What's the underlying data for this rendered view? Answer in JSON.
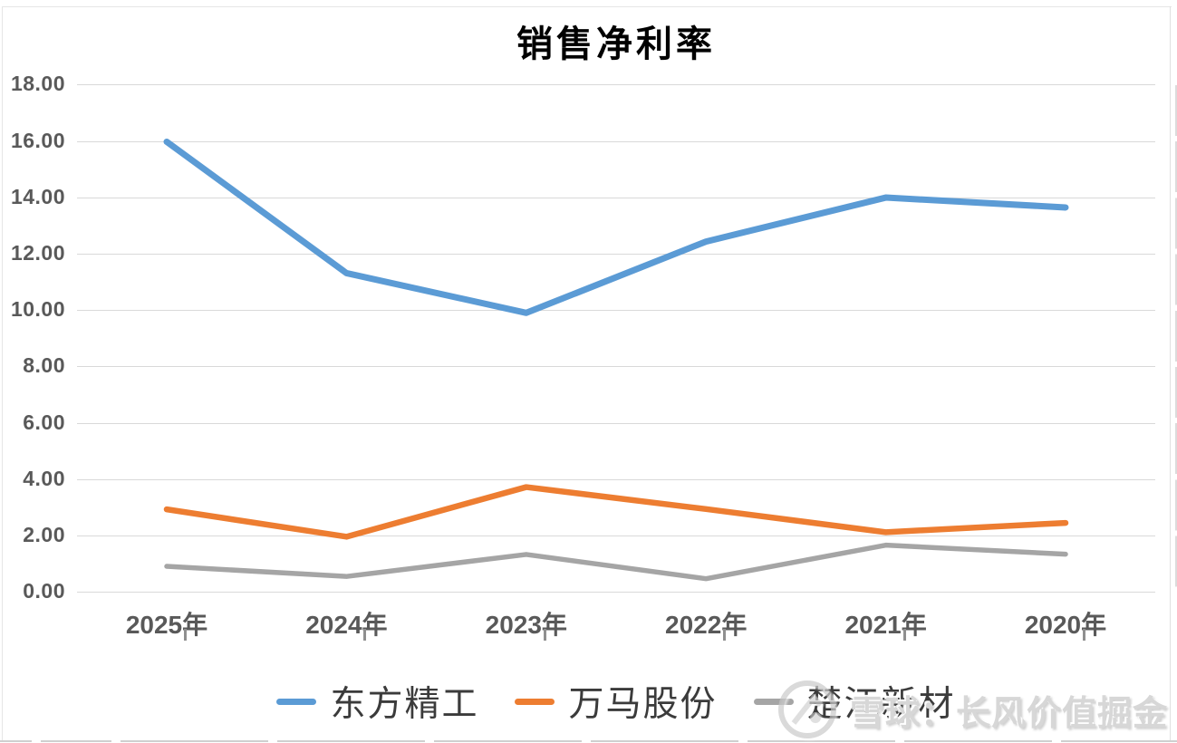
{
  "watermark": {
    "text": "雪球：长风价值掘金",
    "icon": "xueqiu-logo-icon"
  },
  "chart_data": {
    "type": "line",
    "title": "销售净利率",
    "categories": [
      "2025年",
      "2024年",
      "2023年",
      "2022年",
      "2021年",
      "2020年"
    ],
    "series": [
      {
        "name": "东方精工",
        "color": "#5B9BD5",
        "values": [
          15.97,
          11.31,
          9.9,
          12.43,
          13.99,
          13.64
        ]
      },
      {
        "name": "万马股份",
        "color": "#ED7D31",
        "values": [
          2.93,
          1.96,
          3.72,
          2.94,
          2.12,
          2.45
        ]
      },
      {
        "name": "楚江新材",
        "color": "#A5A5A5",
        "values": [
          0.91,
          0.55,
          1.33,
          0.47,
          1.66,
          1.34
        ]
      }
    ],
    "ylim": [
      0,
      18
    ],
    "ytick_step": 2,
    "ytick_labels": [
      "18.00",
      "16.00",
      "14.00",
      "12.00",
      "10.00",
      "8.00",
      "6.00",
      "4.00",
      "2.00",
      "0.00"
    ],
    "xlabel": "",
    "ylabel": "",
    "grid": true,
    "legend_position": "bottom",
    "colors": {
      "axis_label": "#595959",
      "gridline": "#D9D9D9",
      "title": "#000000"
    }
  }
}
